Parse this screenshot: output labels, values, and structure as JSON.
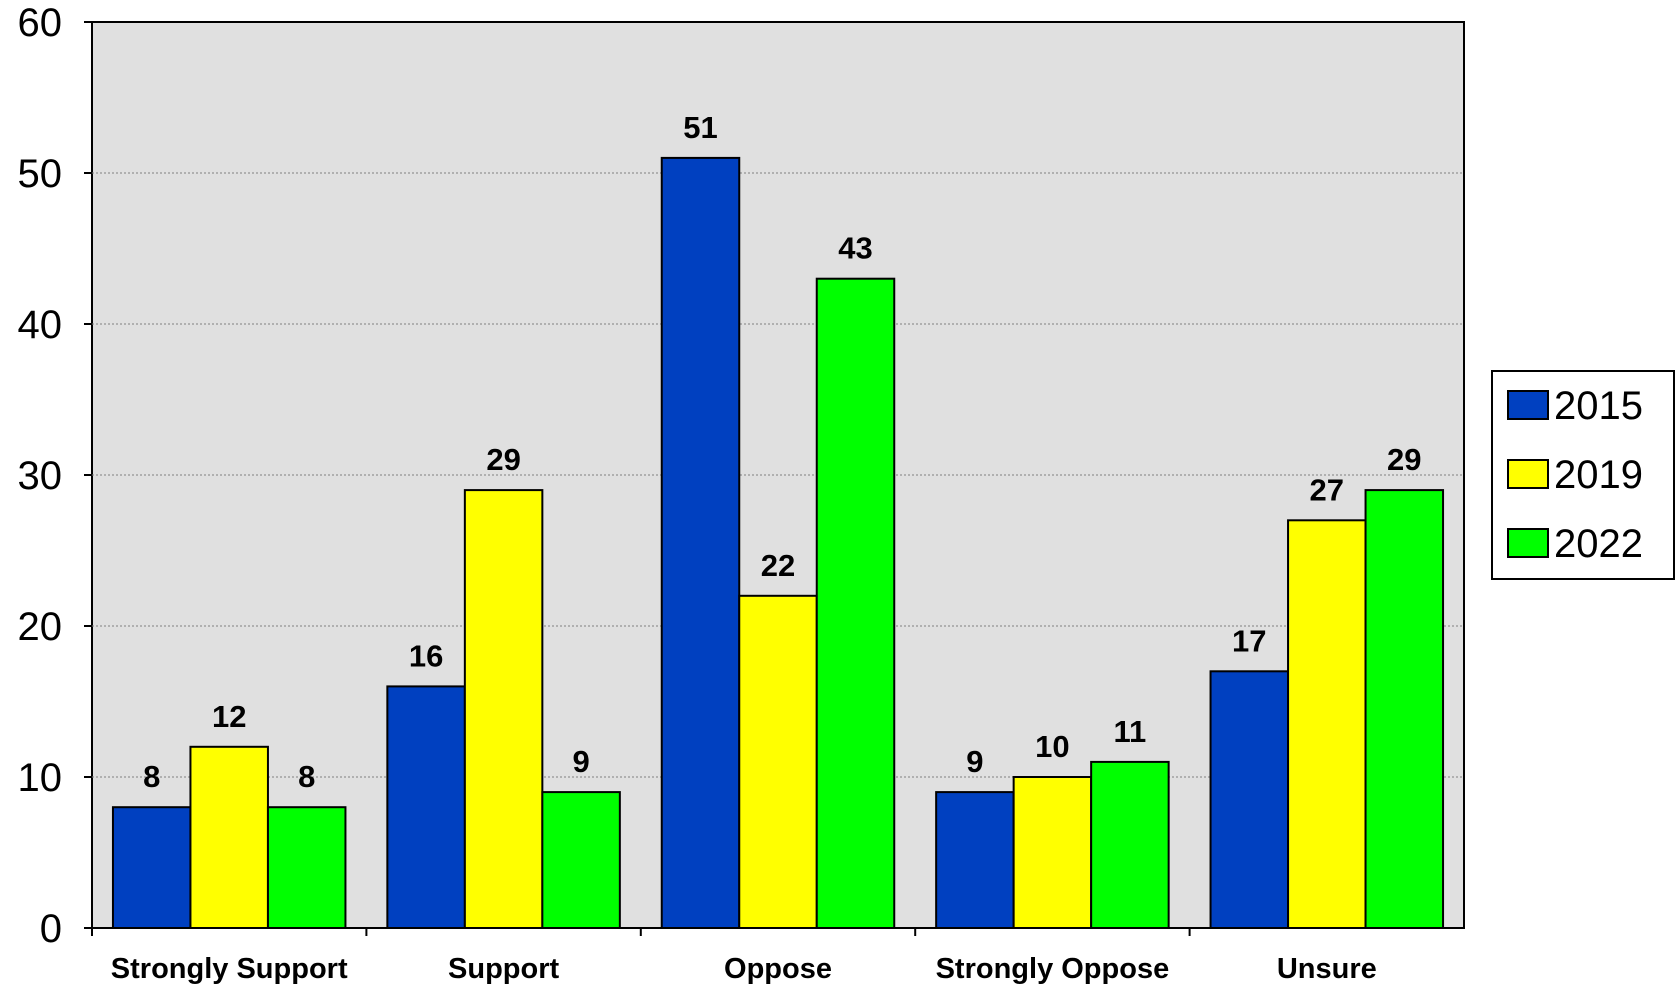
{
  "chart_data": {
    "type": "bar",
    "categories": [
      "Strongly Support",
      "Support",
      "Oppose",
      "Strongly Oppose",
      "Unsure"
    ],
    "series": [
      {
        "name": "2015",
        "color": "#0040c0",
        "values": [
          8,
          16,
          51,
          9,
          17
        ]
      },
      {
        "name": "2019",
        "color": "#ffff00",
        "values": [
          12,
          29,
          22,
          10,
          27
        ]
      },
      {
        "name": "2022",
        "color": "#00ff00",
        "values": [
          8,
          9,
          43,
          11,
          29
        ]
      }
    ],
    "ylim": [
      0,
      60
    ],
    "yticks": [
      0,
      10,
      20,
      30,
      40,
      50,
      60
    ],
    "grid": true,
    "plot_background": "#e0e0e0",
    "legend_position": "right"
  }
}
